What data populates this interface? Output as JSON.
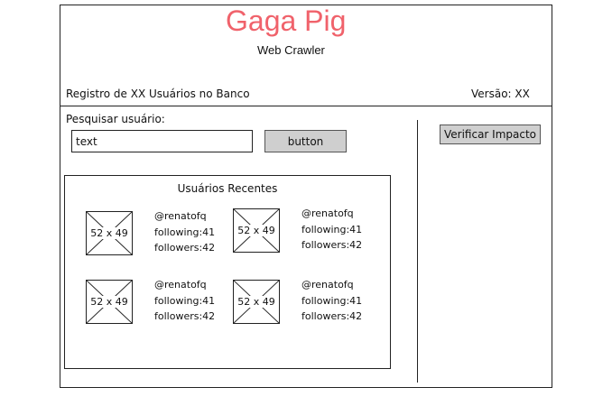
{
  "header": {
    "title": "Gaga Pig",
    "subtitle": "Web Crawler",
    "registry_text": "Registro de XX Usuários no Banco",
    "version_text": "Versão: XX"
  },
  "search": {
    "label": "Pesquisar usuário:",
    "input_value": "text",
    "button_label": "button"
  },
  "side": {
    "impact_button_label": "Verificar Impacto"
  },
  "recent": {
    "title": "Usuários Recentes",
    "users": [
      {
        "avatar_placeholder": "52 x 49",
        "handle": "@renatofq",
        "following": "following:41",
        "followers": "followers:42"
      },
      {
        "avatar_placeholder": "52 x 49",
        "handle": "@renatofq",
        "following": "following:41",
        "followers": "followers:42"
      },
      {
        "avatar_placeholder": "52 x 49",
        "handle": "@renatofq",
        "following": "following:41",
        "followers": "followers:42"
      },
      {
        "avatar_placeholder": "52 x 49",
        "handle": "@renatofq",
        "following": "following:41",
        "followers": "followers:42"
      }
    ]
  },
  "colors": {
    "title": "#f0626b",
    "button_bg": "#cfcfcf"
  }
}
